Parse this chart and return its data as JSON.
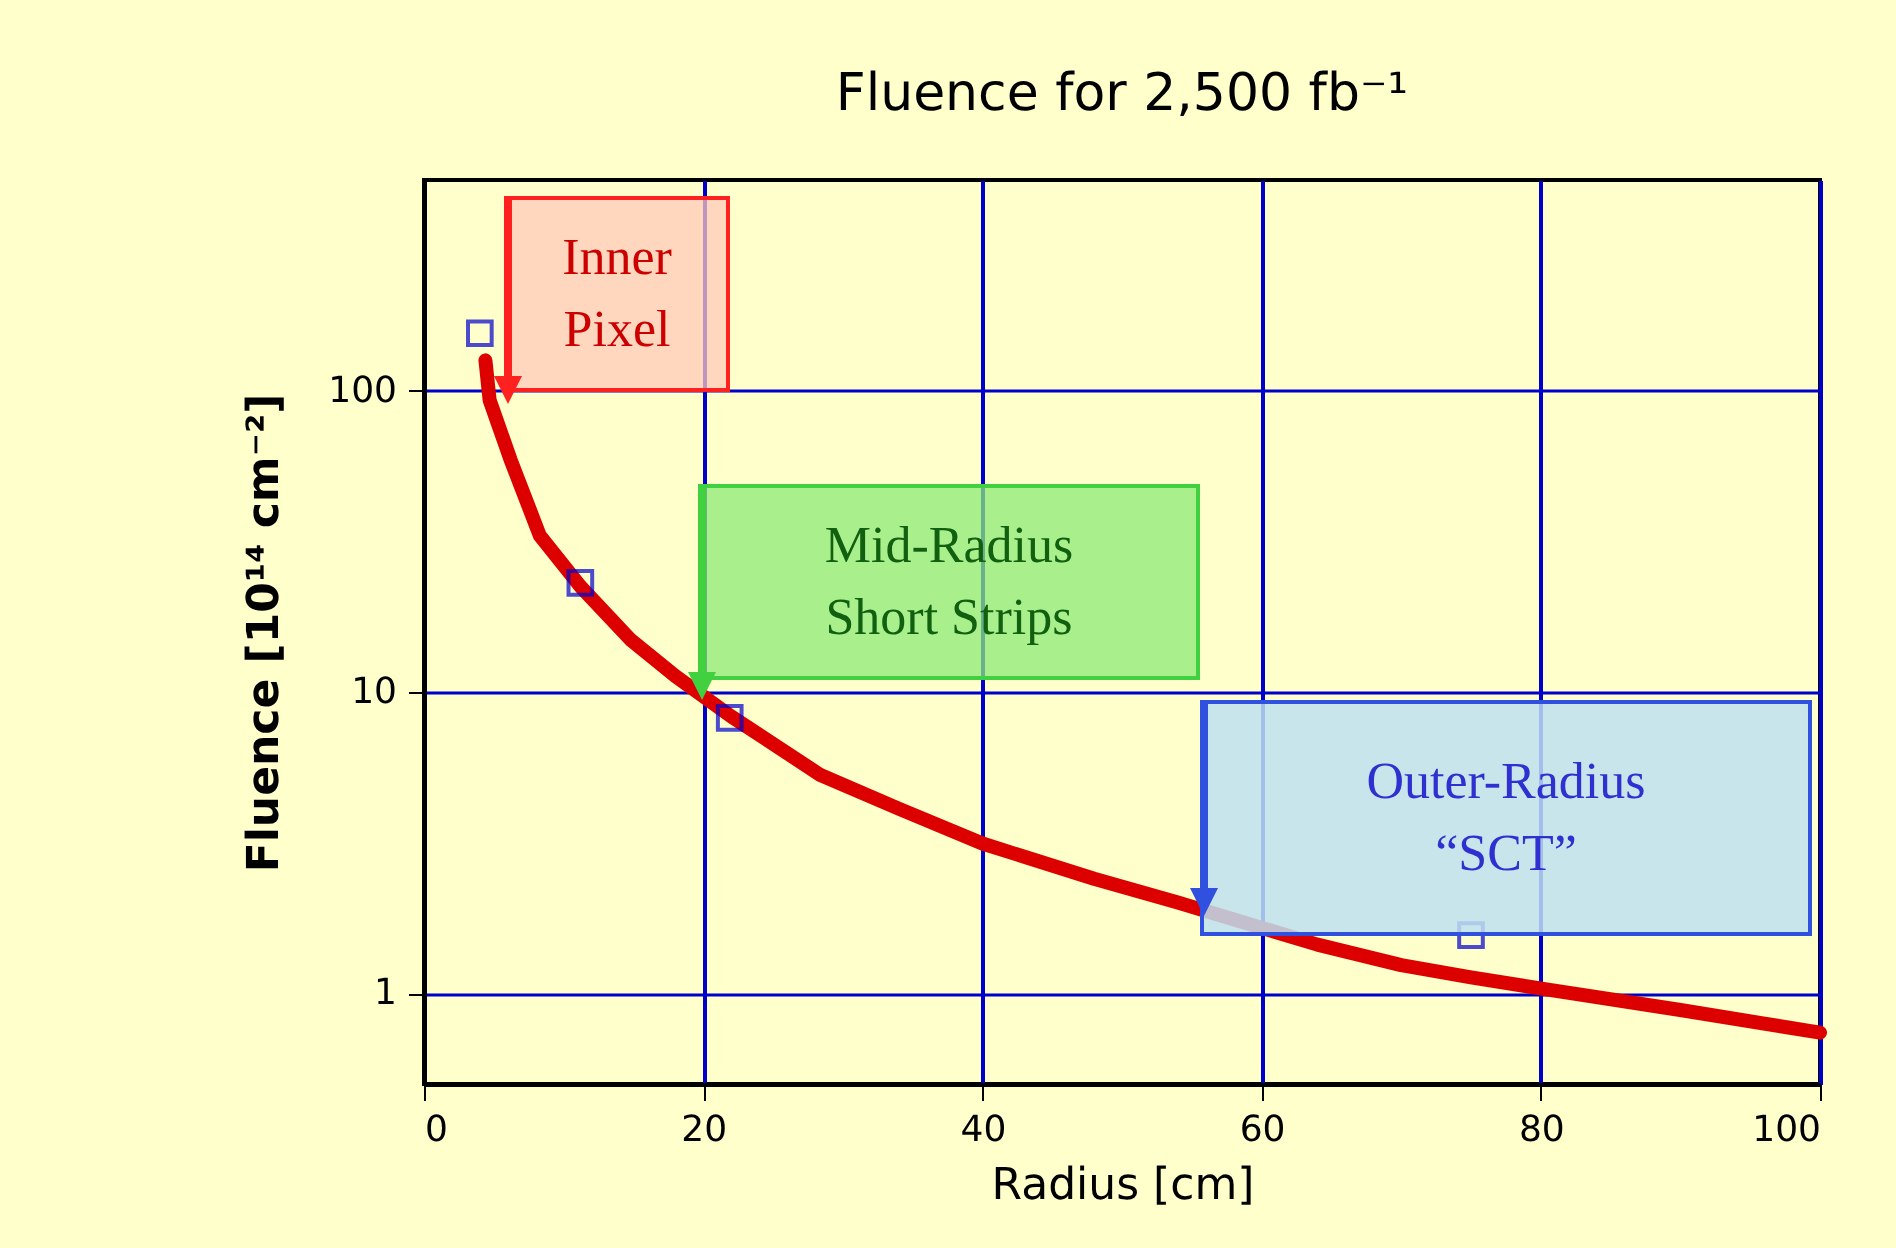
{
  "chart_data": {
    "type": "line",
    "title": "Fluence for 2,500 fb⁻¹",
    "xlabel": "Radius [cm]",
    "ylabel": "Fluence [10¹⁴ cm⁻²]",
    "xlim": [
      0,
      100
    ],
    "xticks": [
      0,
      20,
      40,
      60,
      80,
      100
    ],
    "ylim": [
      0.5,
      500
    ],
    "yticks": [
      1,
      10,
      100
    ],
    "log": "y",
    "grid": true,
    "series": [
      {
        "color": "#dd0000",
        "x": [
          4.4,
          4.7,
          6.2,
          8.3,
          11.2,
          14.8,
          18,
          22,
          28.4,
          34,
          40,
          48,
          54,
          64,
          70,
          75,
          80.4,
          90,
          100
        ],
        "values": [
          126,
          93,
          59,
          33,
          22.4,
          14.9,
          11.3,
          8.3,
          5.3,
          4.1,
          3.14,
          2.4,
          2.0,
          1.45,
          1.24,
          1.13,
          1.03,
          0.88,
          0.74
        ],
        "marker": "none"
      },
      {
        "type": "scatter",
        "color": "#0000cc",
        "x": [
          4,
          11.2,
          21.9,
          75
        ],
        "values": [
          155,
          23,
          8.2,
          1.56
        ],
        "marker": "square"
      }
    ],
    "annotations": [
      "Inner\nPixel",
      "Mid-Radius\nShort Strips",
      "Outer-Radius\n“SCT”"
    ]
  }
}
